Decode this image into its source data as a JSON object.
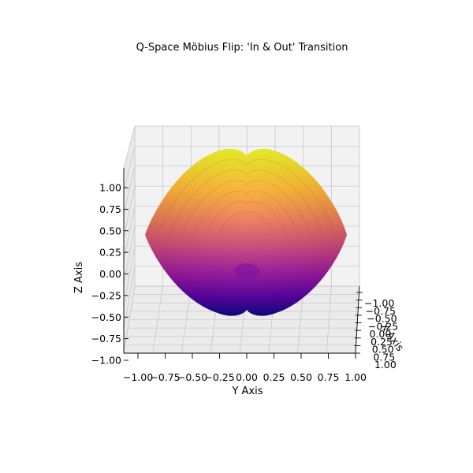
{
  "chart_data": {
    "type": "surface3d",
    "title": "Q-Space Möbius Flip: 'In & Out' Transition",
    "xlabel": "X Axis",
    "ylabel": "Y Axis",
    "zlabel": "Z Axis",
    "xlim": [
      -1.0,
      1.0
    ],
    "ylim": [
      -1.0,
      1.0
    ],
    "zlim": [
      -1.0,
      1.0
    ],
    "x_ticks": [
      "−1.00",
      "−0.75",
      "−0.50",
      "−0.25",
      "0.00",
      "0.25",
      "0.50",
      "0.75",
      "1.00"
    ],
    "y_ticks": [
      "−1.00",
      "−0.75",
      "−0.50",
      "−0.25",
      "0.00",
      "0.25",
      "0.50",
      "0.75",
      "1.00"
    ],
    "z_ticks": [
      "−1.00",
      "−0.75",
      "−0.50",
      "−0.25",
      "0.00",
      "0.25",
      "0.50",
      "0.75",
      "1.00"
    ],
    "colormap": "plasma",
    "colormap_stops": [
      "#0d0887",
      "#5c01a6",
      "#9c179e",
      "#cc4778",
      "#ed7953",
      "#fdb42f",
      "#f0f921"
    ],
    "grid": true
  }
}
